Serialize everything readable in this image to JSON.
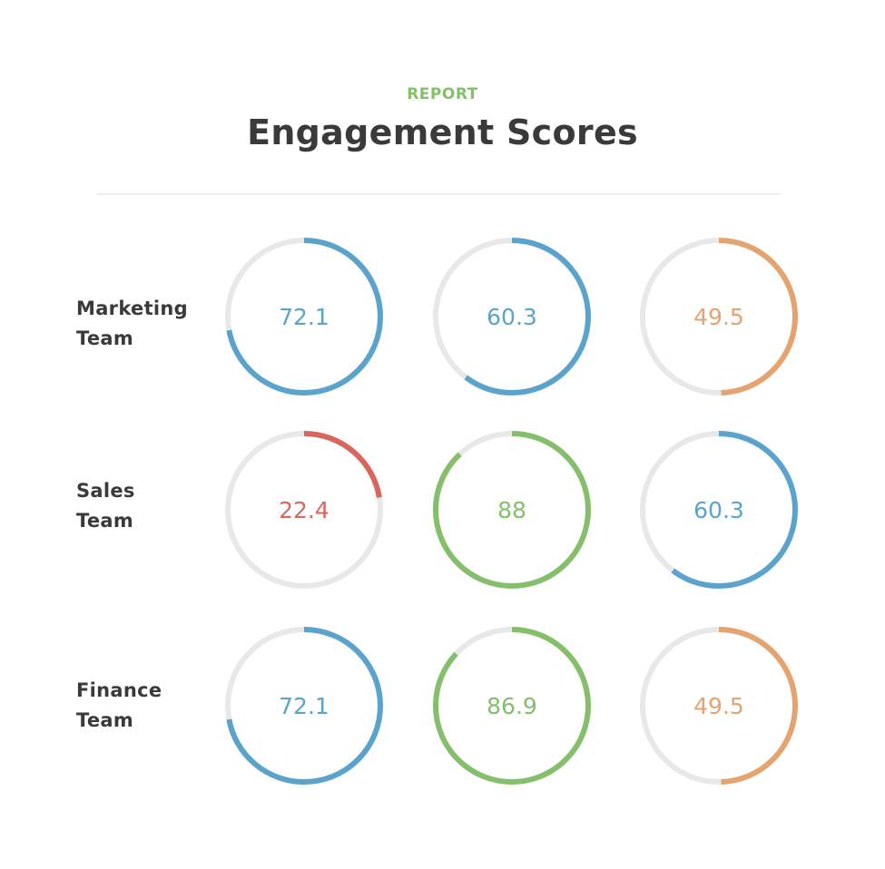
{
  "header": {
    "eyebrow": "REPORT",
    "title": "Engagement Scores"
  },
  "colors": {
    "track": "#e8e8e8",
    "blue": "#5aa3cc",
    "green": "#86bf6c",
    "orange": "#e5a36f",
    "red": "#d9655c"
  },
  "chart_data": {
    "type": "donut-grid",
    "max": 100,
    "rows": [
      {
        "label_lines": [
          "Marketing",
          "Team"
        ],
        "scores": [
          {
            "value": 72.1,
            "label": "72.1",
            "color": "blue"
          },
          {
            "value": 60.3,
            "label": "60.3",
            "color": "blue"
          },
          {
            "value": 49.5,
            "label": "49.5",
            "color": "orange"
          }
        ]
      },
      {
        "label_lines": [
          "Sales",
          "Team"
        ],
        "scores": [
          {
            "value": 22.4,
            "label": "22.4",
            "color": "red"
          },
          {
            "value": 88,
            "label": "88",
            "color": "green"
          },
          {
            "value": 60.3,
            "label": "60.3",
            "color": "blue"
          }
        ]
      },
      {
        "label_lines": [
          "Finance",
          "Team"
        ],
        "scores": [
          {
            "value": 72.1,
            "label": "72.1",
            "color": "blue"
          },
          {
            "value": 86.9,
            "label": "86.9",
            "color": "green"
          },
          {
            "value": 49.5,
            "label": "49.5",
            "color": "orange"
          }
        ]
      }
    ]
  }
}
